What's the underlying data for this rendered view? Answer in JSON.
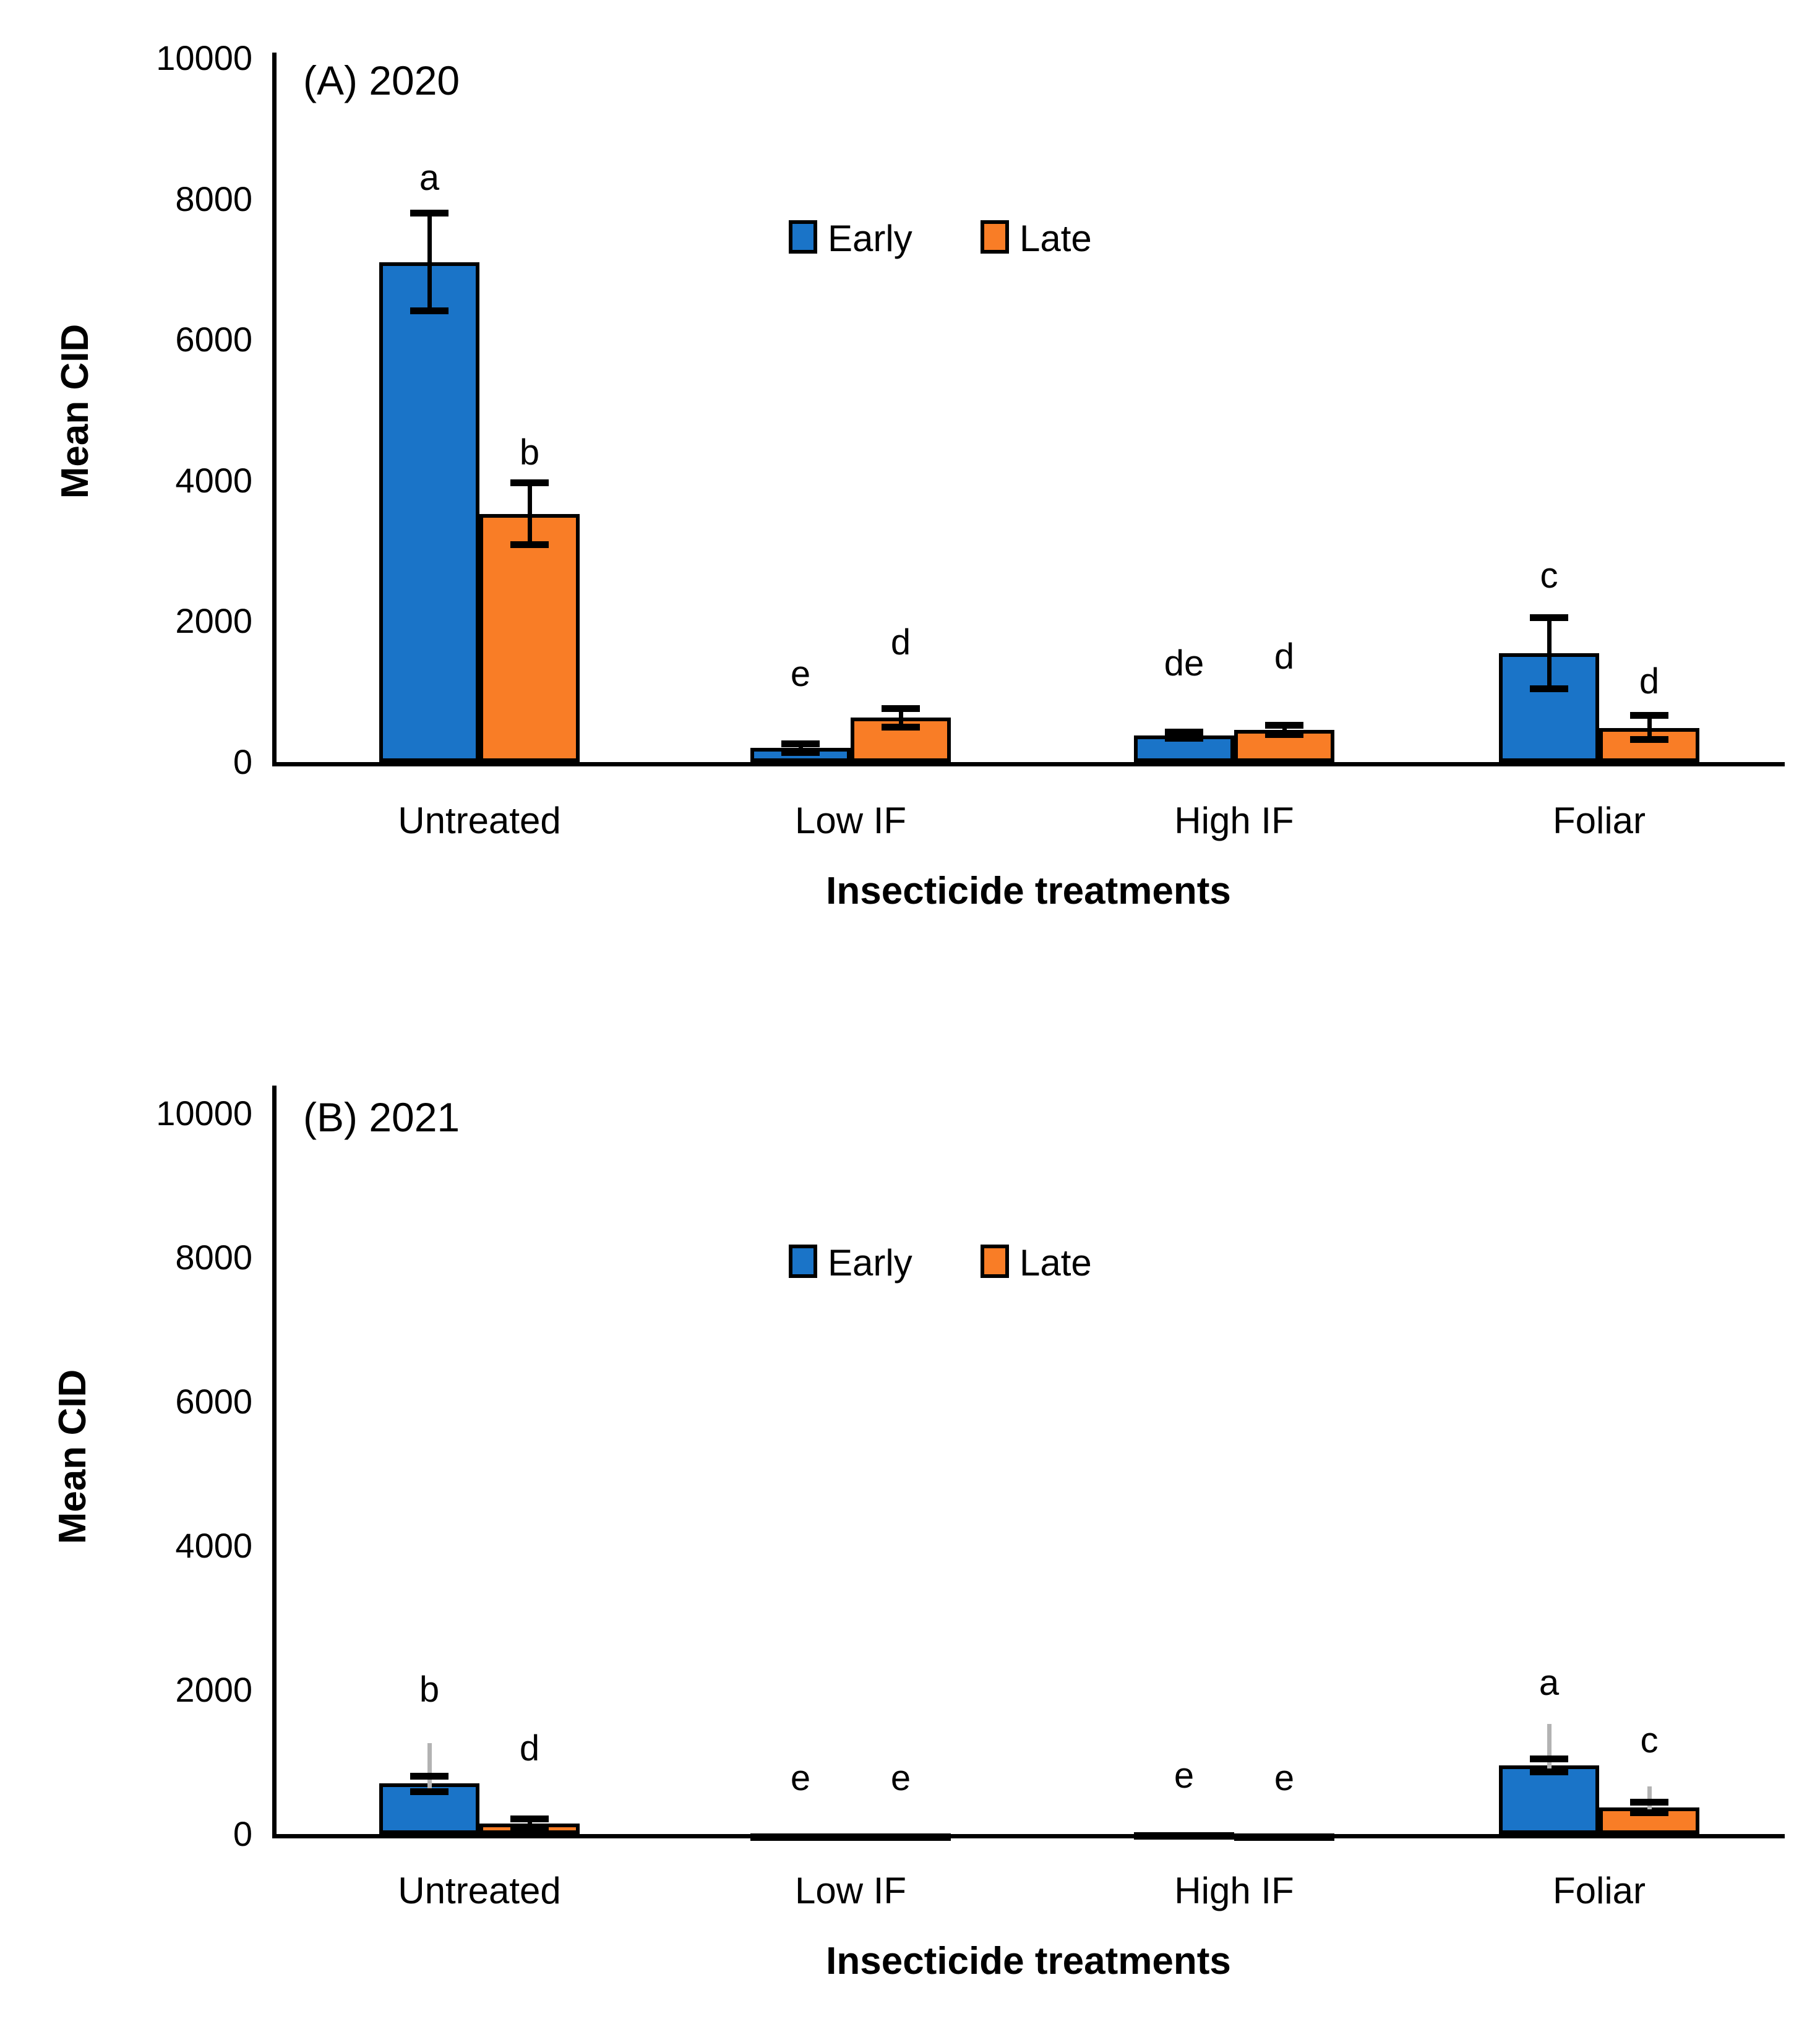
{
  "figure": {
    "background": "#ffffff",
    "series_colors": {
      "early": "#1A74C8",
      "late": "#F97D26"
    },
    "error_bar_gray": "#B3B3B3",
    "error_bar_black": "#000000"
  },
  "chart_data": [
    {
      "type": "bar",
      "panel_label": "(A) 2020",
      "ylabel": "Mean CID",
      "xlabel": "Insecticide treatments",
      "ylim": [
        0,
        10000
      ],
      "yticks": [
        0,
        2000,
        4000,
        6000,
        8000,
        10000
      ],
      "grid": false,
      "legend_position": "upper-center-inside",
      "categories": [
        "Untreated",
        "Low IF",
        "High IF",
        "Foliar"
      ],
      "series": [
        {
          "name": "Early",
          "color": "#1A74C8",
          "bars": [
            {
              "value": 7100,
              "err_up": 700,
              "err_down": 690,
              "err_color": "#000000",
              "gray_to": null,
              "letter": "a",
              "letter_y": 8050
            },
            {
              "value": 200,
              "err_up": 60,
              "err_down": 60,
              "err_color": "#000000",
              "gray_to": null,
              "letter": "e",
              "letter_y": 1000
            },
            {
              "value": 380,
              "err_up": 45,
              "err_down": 45,
              "err_color": "#000000",
              "gray_to": null,
              "letter": "de",
              "letter_y": 1150
            },
            {
              "value": 1550,
              "err_up": 500,
              "err_down": 510,
              "err_color": "#000000",
              "gray_to": null,
              "letter": "c",
              "letter_y": 2400
            }
          ]
        },
        {
          "name": "Late",
          "color": "#F97D26",
          "bars": [
            {
              "value": 3520,
              "err_up": 450,
              "err_down": 430,
              "err_color": "#000000",
              "gray_to": null,
              "letter": "b",
              "letter_y": 4150
            },
            {
              "value": 630,
              "err_up": 130,
              "err_down": 130,
              "err_color": "#000000",
              "gray_to": null,
              "letter": "d",
              "letter_y": 1450
            },
            {
              "value": 460,
              "err_up": 65,
              "err_down": 65,
              "err_color": "#000000",
              "gray_to": null,
              "letter": "d",
              "letter_y": 1250
            },
            {
              "value": 480,
              "err_up": 180,
              "err_down": 160,
              "err_color": "#000000",
              "gray_to": null,
              "letter": "d",
              "letter_y": 900
            }
          ]
        }
      ]
    },
    {
      "type": "bar",
      "panel_label": "(B) 2021",
      "ylabel": "Mean CID",
      "xlabel": "Insecticide treatments",
      "ylim": [
        0,
        10000
      ],
      "yticks": [
        0,
        2000,
        4000,
        6000,
        8000,
        10000
      ],
      "grid": false,
      "legend_position": "upper-center-inside",
      "categories": [
        "Untreated",
        "Low IF",
        "High IF",
        "Foliar"
      ],
      "series": [
        {
          "name": "Early",
          "color": "#1A74C8",
          "bars": [
            {
              "value": 700,
              "err_up": 100,
              "err_down": 110,
              "err_color": "#B3B3B3",
              "gray_to": 1260,
              "letter": "b",
              "letter_y": 1760
            },
            {
              "value": 12,
              "err_up": null,
              "err_down": null,
              "err_color": null,
              "gray_to": null,
              "letter": "e",
              "letter_y": 530
            },
            {
              "value": 30,
              "err_up": null,
              "err_down": null,
              "err_color": null,
              "gray_to": null,
              "letter": "e",
              "letter_y": 570
            },
            {
              "value": 950,
              "err_up": 90,
              "err_down": 90,
              "err_color": "#B3B3B3",
              "gray_to": 1530,
              "letter": "a",
              "letter_y": 1850
            }
          ]
        },
        {
          "name": "Late",
          "color": "#F97D26",
          "bars": [
            {
              "value": 150,
              "err_up": 60,
              "err_down": 60,
              "err_color": "#000000",
              "gray_to": null,
              "letter": "d",
              "letter_y": 940
            },
            {
              "value": 12,
              "err_up": null,
              "err_down": null,
              "err_color": null,
              "gray_to": null,
              "letter": "e",
              "letter_y": 530
            },
            {
              "value": 12,
              "err_up": null,
              "err_down": null,
              "err_color": null,
              "gray_to": null,
              "letter": "e",
              "letter_y": 530
            },
            {
              "value": 370,
              "err_up": 70,
              "err_down": 70,
              "err_color": "#B3B3B3",
              "gray_to": 660,
              "letter": "c",
              "letter_y": 1060
            }
          ]
        }
      ]
    }
  ]
}
